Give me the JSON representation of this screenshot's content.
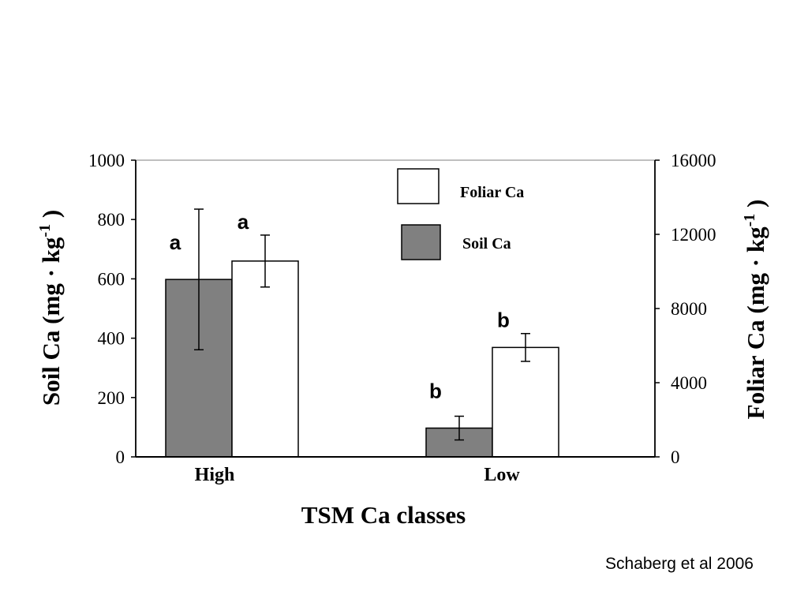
{
  "chart_data": {
    "type": "bar",
    "categories": [
      "High",
      "Low"
    ],
    "xlabel": "TSM Ca classes",
    "ylabel_left": "Soil Ca (mg · kg",
    "ylabel_right": "Foliar Ca (mg · kg",
    "ylabel_exponent": "-1",
    "ylabel_close": " )",
    "ylim_left": [
      0,
      1000
    ],
    "yticks_left": [
      0,
      200,
      400,
      600,
      800,
      1000
    ],
    "ylim_right": [
      0,
      16000
    ],
    "yticks_right": [
      0,
      4000,
      8000,
      12000,
      16000
    ],
    "grid": false,
    "legend_position": "top-right",
    "series": [
      {
        "name": "Soil Ca",
        "axis": "left",
        "color": "#808080",
        "values": [
          598,
          97
        ],
        "error": [
          237,
          40
        ],
        "sig_labels": [
          "a",
          "b"
        ]
      },
      {
        "name": "Foliar Ca",
        "axis": "right",
        "color": "#ffffff",
        "values": [
          10560,
          5900
        ],
        "error": [
          1400,
          750
        ],
        "sig_labels": [
          "a",
          "b"
        ]
      }
    ]
  },
  "legend": [
    {
      "label": "Foliar Ca",
      "color": "#ffffff"
    },
    {
      "label": "Soil Ca",
      "color": "#808080"
    }
  ],
  "credit": "Schaberg et al 2006"
}
